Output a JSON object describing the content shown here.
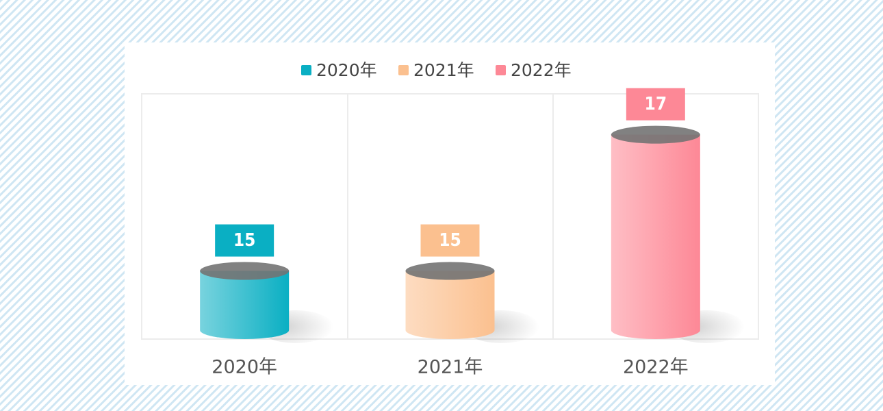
{
  "chart_data": {
    "type": "cylinder-bar",
    "categories": [
      "2020年",
      "2021年",
      "2022年"
    ],
    "values": [
      15,
      15,
      17
    ],
    "colors": [
      "#0aafc3",
      "#fbc08f",
      "#fd8896"
    ],
    "ylim": [
      14,
      17.6
    ],
    "legend": "top"
  }
}
